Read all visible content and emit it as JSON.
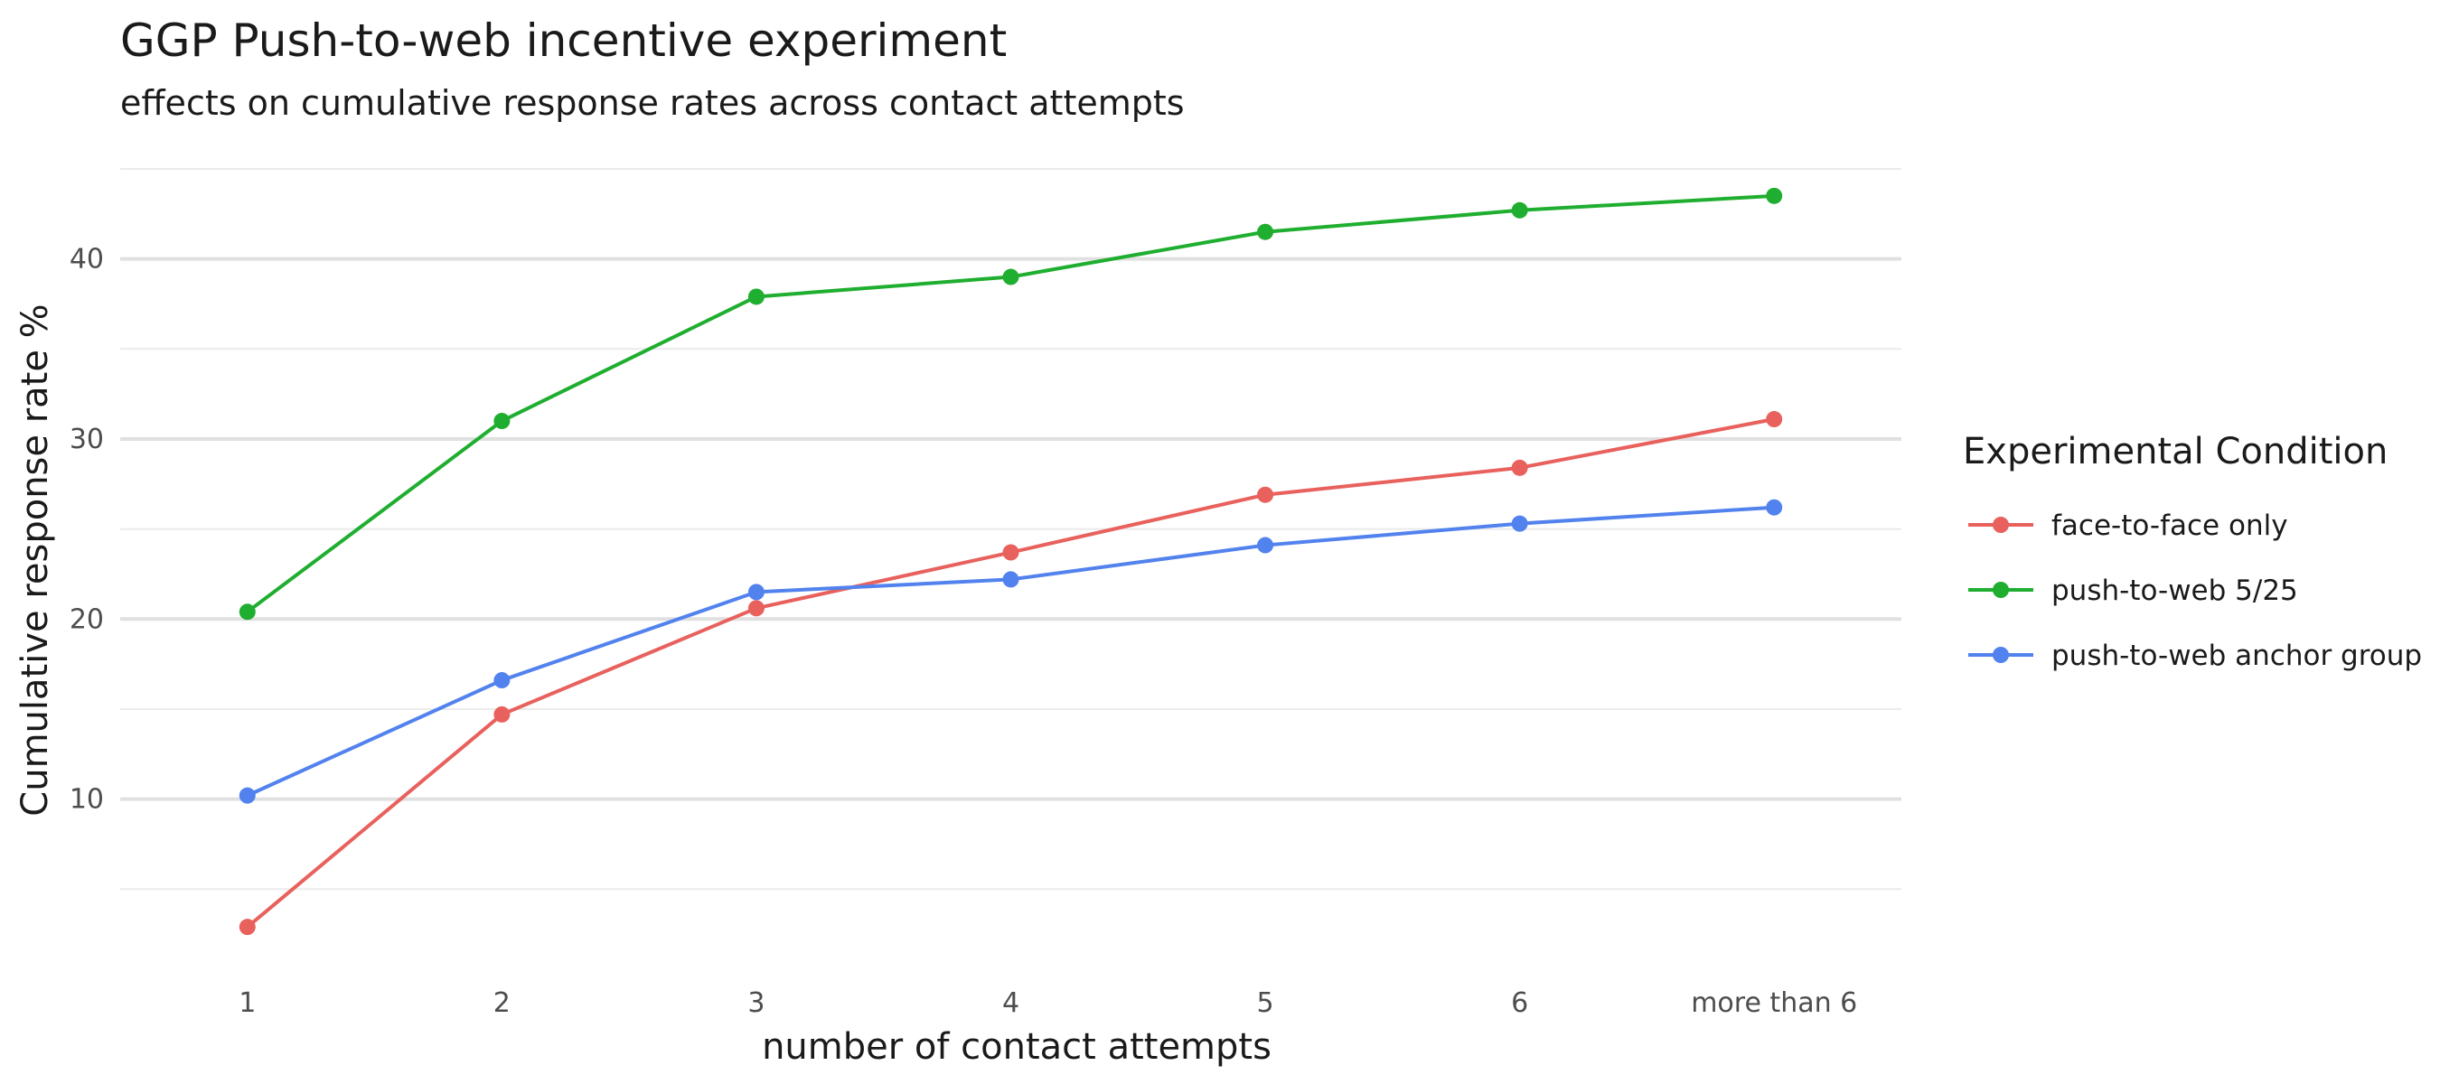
{
  "chart_data": {
    "type": "line",
    "title": "GGP Push-to-web incentive experiment",
    "subtitle": "effects on cumulative response rates across contact attempts",
    "xlabel": "number of contact attempts",
    "ylabel": "Cumulative response rate %",
    "categories": [
      "1",
      "2",
      "3",
      "4",
      "5",
      "6",
      "more than 6"
    ],
    "ylim": [
      0.8,
      45.7
    ],
    "y_ticks": [
      10,
      20,
      30,
      40
    ],
    "grid": true,
    "legend": {
      "title": "Experimental Condition",
      "placement": "right"
    },
    "series": [
      {
        "name": "face-to-face only",
        "color": "#E8615D",
        "values": [
          2.9,
          14.7,
          20.6,
          23.7,
          26.9,
          28.4,
          31.1
        ]
      },
      {
        "name": "push-to-web 5/25",
        "color": "#1FAE2F",
        "values": [
          20.4,
          31.0,
          37.9,
          39.0,
          41.5,
          42.7,
          43.5
        ]
      },
      {
        "name": "push-to-web anchor group",
        "color": "#5282EE",
        "values": [
          10.2,
          16.6,
          21.5,
          22.2,
          24.1,
          25.3,
          26.2
        ]
      }
    ]
  }
}
